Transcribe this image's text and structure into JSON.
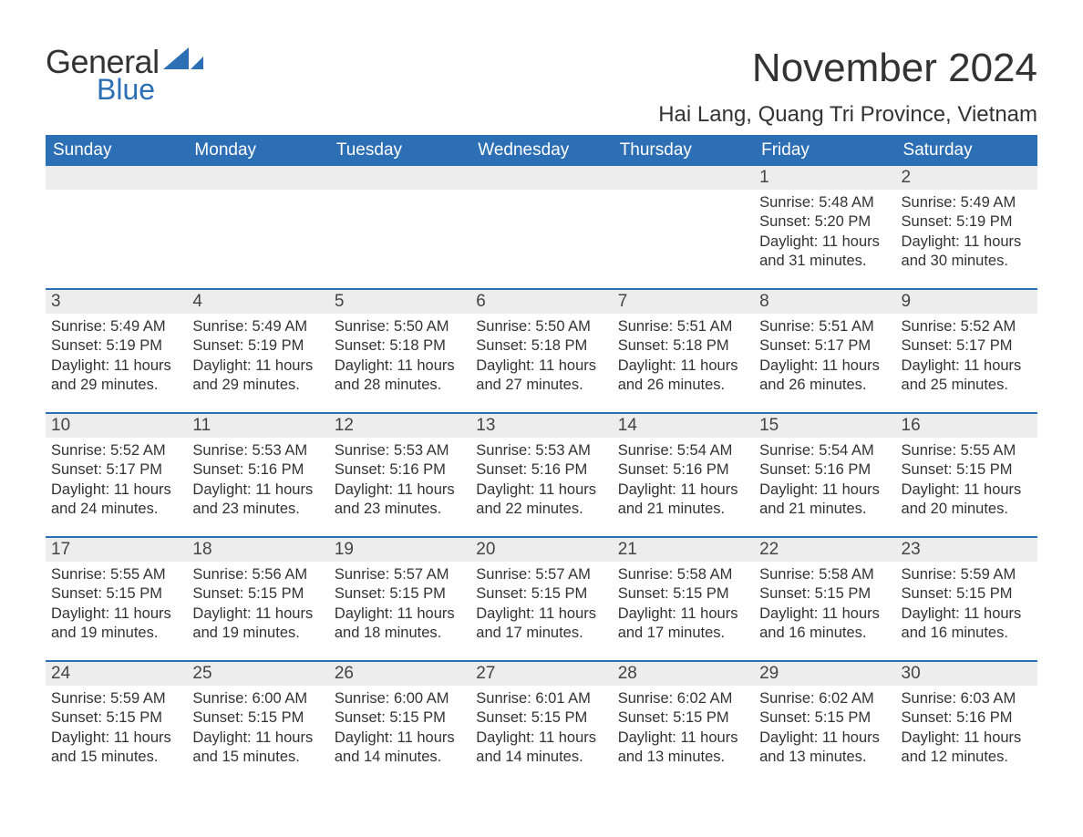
{
  "logo": {
    "text1": "General",
    "text2": "Blue",
    "shape_color": "#2d6fb5"
  },
  "title": "November 2024",
  "location": "Hai Lang, Quang Tri Province, Vietnam",
  "colors": {
    "header_bg": "#2d6fb5",
    "header_text": "#ffffff",
    "daynum_bg": "#ededed",
    "row_border": "#2d6fb5",
    "body_text": "#333333"
  },
  "fonts": {
    "month_title_size": 44,
    "location_size": 24,
    "weekday_size": 19,
    "daynum_size": 19,
    "body_size": 16.5
  },
  "weekdays": [
    "Sunday",
    "Monday",
    "Tuesday",
    "Wednesday",
    "Thursday",
    "Friday",
    "Saturday"
  ],
  "weeks": [
    [
      null,
      null,
      null,
      null,
      null,
      {
        "n": "1",
        "sunrise": "5:48 AM",
        "sunset": "5:20 PM",
        "daylight": "11 hours and 31 minutes."
      },
      {
        "n": "2",
        "sunrise": "5:49 AM",
        "sunset": "5:19 PM",
        "daylight": "11 hours and 30 minutes."
      }
    ],
    [
      {
        "n": "3",
        "sunrise": "5:49 AM",
        "sunset": "5:19 PM",
        "daylight": "11 hours and 29 minutes."
      },
      {
        "n": "4",
        "sunrise": "5:49 AM",
        "sunset": "5:19 PM",
        "daylight": "11 hours and 29 minutes."
      },
      {
        "n": "5",
        "sunrise": "5:50 AM",
        "sunset": "5:18 PM",
        "daylight": "11 hours and 28 minutes."
      },
      {
        "n": "6",
        "sunrise": "5:50 AM",
        "sunset": "5:18 PM",
        "daylight": "11 hours and 27 minutes."
      },
      {
        "n": "7",
        "sunrise": "5:51 AM",
        "sunset": "5:18 PM",
        "daylight": "11 hours and 26 minutes."
      },
      {
        "n": "8",
        "sunrise": "5:51 AM",
        "sunset": "5:17 PM",
        "daylight": "11 hours and 26 minutes."
      },
      {
        "n": "9",
        "sunrise": "5:52 AM",
        "sunset": "5:17 PM",
        "daylight": "11 hours and 25 minutes."
      }
    ],
    [
      {
        "n": "10",
        "sunrise": "5:52 AM",
        "sunset": "5:17 PM",
        "daylight": "11 hours and 24 minutes."
      },
      {
        "n": "11",
        "sunrise": "5:53 AM",
        "sunset": "5:16 PM",
        "daylight": "11 hours and 23 minutes."
      },
      {
        "n": "12",
        "sunrise": "5:53 AM",
        "sunset": "5:16 PM",
        "daylight": "11 hours and 23 minutes."
      },
      {
        "n": "13",
        "sunrise": "5:53 AM",
        "sunset": "5:16 PM",
        "daylight": "11 hours and 22 minutes."
      },
      {
        "n": "14",
        "sunrise": "5:54 AM",
        "sunset": "5:16 PM",
        "daylight": "11 hours and 21 minutes."
      },
      {
        "n": "15",
        "sunrise": "5:54 AM",
        "sunset": "5:16 PM",
        "daylight": "11 hours and 21 minutes."
      },
      {
        "n": "16",
        "sunrise": "5:55 AM",
        "sunset": "5:15 PM",
        "daylight": "11 hours and 20 minutes."
      }
    ],
    [
      {
        "n": "17",
        "sunrise": "5:55 AM",
        "sunset": "5:15 PM",
        "daylight": "11 hours and 19 minutes."
      },
      {
        "n": "18",
        "sunrise": "5:56 AM",
        "sunset": "5:15 PM",
        "daylight": "11 hours and 19 minutes."
      },
      {
        "n": "19",
        "sunrise": "5:57 AM",
        "sunset": "5:15 PM",
        "daylight": "11 hours and 18 minutes."
      },
      {
        "n": "20",
        "sunrise": "5:57 AM",
        "sunset": "5:15 PM",
        "daylight": "11 hours and 17 minutes."
      },
      {
        "n": "21",
        "sunrise": "5:58 AM",
        "sunset": "5:15 PM",
        "daylight": "11 hours and 17 minutes."
      },
      {
        "n": "22",
        "sunrise": "5:58 AM",
        "sunset": "5:15 PM",
        "daylight": "11 hours and 16 minutes."
      },
      {
        "n": "23",
        "sunrise": "5:59 AM",
        "sunset": "5:15 PM",
        "daylight": "11 hours and 16 minutes."
      }
    ],
    [
      {
        "n": "24",
        "sunrise": "5:59 AM",
        "sunset": "5:15 PM",
        "daylight": "11 hours and 15 minutes."
      },
      {
        "n": "25",
        "sunrise": "6:00 AM",
        "sunset": "5:15 PM",
        "daylight": "11 hours and 15 minutes."
      },
      {
        "n": "26",
        "sunrise": "6:00 AM",
        "sunset": "5:15 PM",
        "daylight": "11 hours and 14 minutes."
      },
      {
        "n": "27",
        "sunrise": "6:01 AM",
        "sunset": "5:15 PM",
        "daylight": "11 hours and 14 minutes."
      },
      {
        "n": "28",
        "sunrise": "6:02 AM",
        "sunset": "5:15 PM",
        "daylight": "11 hours and 13 minutes."
      },
      {
        "n": "29",
        "sunrise": "6:02 AM",
        "sunset": "5:15 PM",
        "daylight": "11 hours and 13 minutes."
      },
      {
        "n": "30",
        "sunrise": "6:03 AM",
        "sunset": "5:16 PM",
        "daylight": "11 hours and 12 minutes."
      }
    ]
  ],
  "labels": {
    "sunrise": "Sunrise:",
    "sunset": "Sunset:",
    "daylight": "Daylight:"
  }
}
